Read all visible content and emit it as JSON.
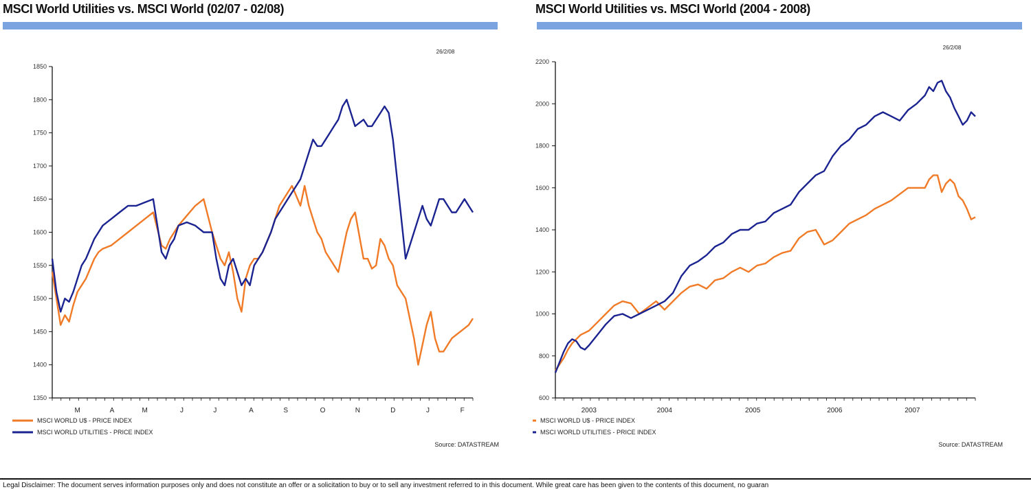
{
  "colors": {
    "us": "#f07a26",
    "util": "#1a2390",
    "axis": "#111111",
    "bar": "#7aa3df"
  },
  "disclaimer": "Legal Disclaimer: The document serves information purposes only and does not constitute an offer or a solicitation to buy or to sell any investment referred to in this document. While great care has been given to the contents of this document, no guaran",
  "chart_data": [
    {
      "type": "line",
      "title": "MSCI World Utilities vs. MSCI World (02/07 - 02/08)",
      "date_stamp": "26/2/08",
      "source": "Source: DATASTREAM",
      "ylim": [
        1350,
        1850
      ],
      "yticks": [
        1350,
        1400,
        1450,
        1500,
        1550,
        1600,
        1650,
        1700,
        1750,
        1800,
        1850
      ],
      "xlim": [
        0,
        100
      ],
      "xtick_labels": [
        {
          "label": "M",
          "x": 6
        },
        {
          "label": "A",
          "x": 14.2
        },
        {
          "label": "M",
          "x": 22
        },
        {
          "label": "J",
          "x": 30.8
        },
        {
          "label": "J",
          "x": 38.7
        },
        {
          "label": "A",
          "x": 47.3
        },
        {
          "label": "S",
          "x": 55.5
        },
        {
          "label": "O",
          "x": 64.3
        },
        {
          "label": "N",
          "x": 72.6
        },
        {
          "label": "D",
          "x": 81
        },
        {
          "label": "J",
          "x": 89.3
        },
        {
          "label": "F",
          "x": 97.5
        }
      ],
      "grid": false,
      "legend": "bottom-left",
      "series": [
        {
          "name": "MSCI WORLD U$ - PRICE INDEX",
          "color_key": "us",
          "x": [
            0,
            1,
            2,
            3,
            4,
            5,
            6,
            7,
            8,
            9,
            10,
            11,
            12,
            14,
            16,
            18,
            20,
            22,
            24,
            26,
            27,
            28,
            29,
            30,
            32,
            34,
            36,
            38,
            39,
            40,
            41,
            42,
            43,
            44,
            45,
            46,
            47,
            48,
            49,
            50,
            52,
            53,
            54,
            55,
            56,
            57,
            58,
            59,
            60,
            61,
            62,
            63,
            64,
            65,
            66,
            67,
            68,
            69,
            70,
            71,
            72,
            74,
            75,
            76,
            77,
            78,
            79,
            80,
            81,
            82,
            84,
            86,
            87,
            88,
            89,
            90,
            91,
            92,
            93,
            94,
            95,
            96,
            97,
            98,
            99,
            100
          ],
          "y": [
            1540,
            1500,
            1460,
            1475,
            1465,
            1490,
            1510,
            1520,
            1530,
            1545,
            1560,
            1570,
            1575,
            1580,
            1590,
            1600,
            1610,
            1620,
            1630,
            1580,
            1575,
            1590,
            1600,
            1610,
            1625,
            1640,
            1650,
            1600,
            1580,
            1560,
            1550,
            1570,
            1540,
            1500,
            1480,
            1530,
            1550,
            1560,
            1560,
            1570,
            1600,
            1620,
            1640,
            1650,
            1660,
            1670,
            1655,
            1640,
            1670,
            1640,
            1620,
            1600,
            1590,
            1570,
            1560,
            1550,
            1540,
            1570,
            1600,
            1620,
            1630,
            1560,
            1560,
            1545,
            1550,
            1590,
            1580,
            1560,
            1550,
            1520,
            1500,
            1440,
            1400,
            1430,
            1460,
            1480,
            1440,
            1420,
            1420,
            1430,
            1440,
            1445,
            1450,
            1455,
            1460,
            1470
          ]
        },
        {
          "name": "MSCI WORLD UTILITIES - PRICE INDEX",
          "color_key": "util",
          "x": [
            0,
            1,
            2,
            3,
            4,
            5,
            6,
            7,
            8,
            9,
            10,
            11,
            12,
            14,
            16,
            18,
            20,
            22,
            24,
            26,
            27,
            28,
            29,
            30,
            32,
            34,
            36,
            38,
            39,
            40,
            41,
            42,
            43,
            44,
            45,
            46,
            47,
            48,
            49,
            50,
            52,
            53,
            54,
            55,
            56,
            57,
            58,
            59,
            60,
            61,
            62,
            63,
            64,
            65,
            66,
            67,
            68,
            69,
            70,
            71,
            72,
            74,
            75,
            76,
            77,
            78,
            79,
            80,
            81,
            82,
            84,
            86,
            87,
            88,
            89,
            90,
            91,
            92,
            93,
            94,
            95,
            96,
            97,
            98,
            99,
            100
          ],
          "y": [
            1560,
            1510,
            1480,
            1500,
            1495,
            1510,
            1530,
            1550,
            1560,
            1575,
            1590,
            1600,
            1610,
            1620,
            1630,
            1640,
            1640,
            1645,
            1650,
            1570,
            1560,
            1580,
            1590,
            1610,
            1615,
            1610,
            1600,
            1600,
            1560,
            1530,
            1520,
            1550,
            1560,
            1540,
            1520,
            1530,
            1520,
            1550,
            1560,
            1570,
            1600,
            1620,
            1630,
            1640,
            1650,
            1660,
            1670,
            1680,
            1700,
            1720,
            1740,
            1730,
            1730,
            1740,
            1750,
            1760,
            1770,
            1790,
            1800,
            1780,
            1760,
            1770,
            1760,
            1760,
            1770,
            1780,
            1790,
            1780,
            1740,
            1680,
            1560,
            1600,
            1620,
            1640,
            1620,
            1610,
            1630,
            1650,
            1650,
            1640,
            1630,
            1630,
            1640,
            1650,
            1640,
            1630
          ]
        }
      ]
    },
    {
      "type": "line",
      "title": "MSCI World Utilities vs. MSCI World (2004 - 2008)",
      "date_stamp": "26/2/08",
      "source": "Source: DATASTREAM",
      "ylim": [
        600,
        2200
      ],
      "yticks": [
        600,
        800,
        1000,
        1200,
        1400,
        1600,
        1800,
        2000,
        2200
      ],
      "xlim": [
        0,
        100
      ],
      "xtick_labels": [
        {
          "label": "2003",
          "x": 8
        },
        {
          "label": "2004",
          "x": 26
        },
        {
          "label": "2005",
          "x": 47
        },
        {
          "label": "2006",
          "x": 66.5
        },
        {
          "label": "2007",
          "x": 85
        }
      ],
      "grid": false,
      "legend": "bottom-left",
      "series": [
        {
          "name": "MSCI WORLD U$ - PRICE INDEX",
          "color_key": "us",
          "x": [
            0,
            1,
            2,
            3,
            4,
            5,
            6,
            7,
            8,
            10,
            12,
            14,
            16,
            18,
            20,
            22,
            24,
            26,
            28,
            30,
            32,
            34,
            36,
            38,
            40,
            42,
            44,
            46,
            48,
            50,
            52,
            54,
            56,
            58,
            60,
            62,
            64,
            66,
            68,
            70,
            72,
            74,
            76,
            78,
            80,
            82,
            84,
            86,
            88,
            89,
            90,
            91,
            92,
            93,
            94,
            95,
            96,
            97,
            98,
            99,
            100
          ],
          "y": [
            730,
            760,
            790,
            830,
            860,
            880,
            900,
            910,
            920,
            960,
            1000,
            1040,
            1060,
            1050,
            1000,
            1030,
            1060,
            1020,
            1060,
            1100,
            1130,
            1140,
            1120,
            1160,
            1170,
            1200,
            1220,
            1200,
            1230,
            1240,
            1270,
            1290,
            1300,
            1360,
            1390,
            1400,
            1330,
            1350,
            1390,
            1430,
            1450,
            1470,
            1500,
            1520,
            1540,
            1570,
            1600,
            1600,
            1600,
            1640,
            1660,
            1660,
            1580,
            1620,
            1640,
            1620,
            1560,
            1540,
            1500,
            1450,
            1460
          ]
        },
        {
          "name": "MSCI WORLD UTILITIES - PRICE INDEX",
          "color_key": "util",
          "x": [
            0,
            1,
            2,
            3,
            4,
            5,
            6,
            7,
            8,
            10,
            12,
            14,
            16,
            18,
            20,
            22,
            24,
            26,
            28,
            30,
            32,
            34,
            36,
            38,
            40,
            42,
            44,
            46,
            48,
            50,
            52,
            54,
            56,
            58,
            60,
            62,
            64,
            66,
            68,
            70,
            72,
            74,
            76,
            78,
            80,
            82,
            84,
            86,
            88,
            89,
            90,
            91,
            92,
            93,
            94,
            95,
            96,
            97,
            98,
            99,
            100
          ],
          "y": [
            720,
            770,
            820,
            860,
            880,
            870,
            840,
            830,
            850,
            900,
            950,
            990,
            1000,
            980,
            1000,
            1020,
            1040,
            1060,
            1100,
            1180,
            1230,
            1250,
            1280,
            1320,
            1340,
            1380,
            1400,
            1400,
            1430,
            1440,
            1480,
            1500,
            1520,
            1580,
            1620,
            1660,
            1680,
            1750,
            1800,
            1830,
            1880,
            1900,
            1940,
            1960,
            1940,
            1920,
            1970,
            2000,
            2040,
            2080,
            2060,
            2100,
            2110,
            2060,
            2030,
            1980,
            1940,
            1900,
            1920,
            1960,
            1940
          ]
        }
      ]
    }
  ]
}
